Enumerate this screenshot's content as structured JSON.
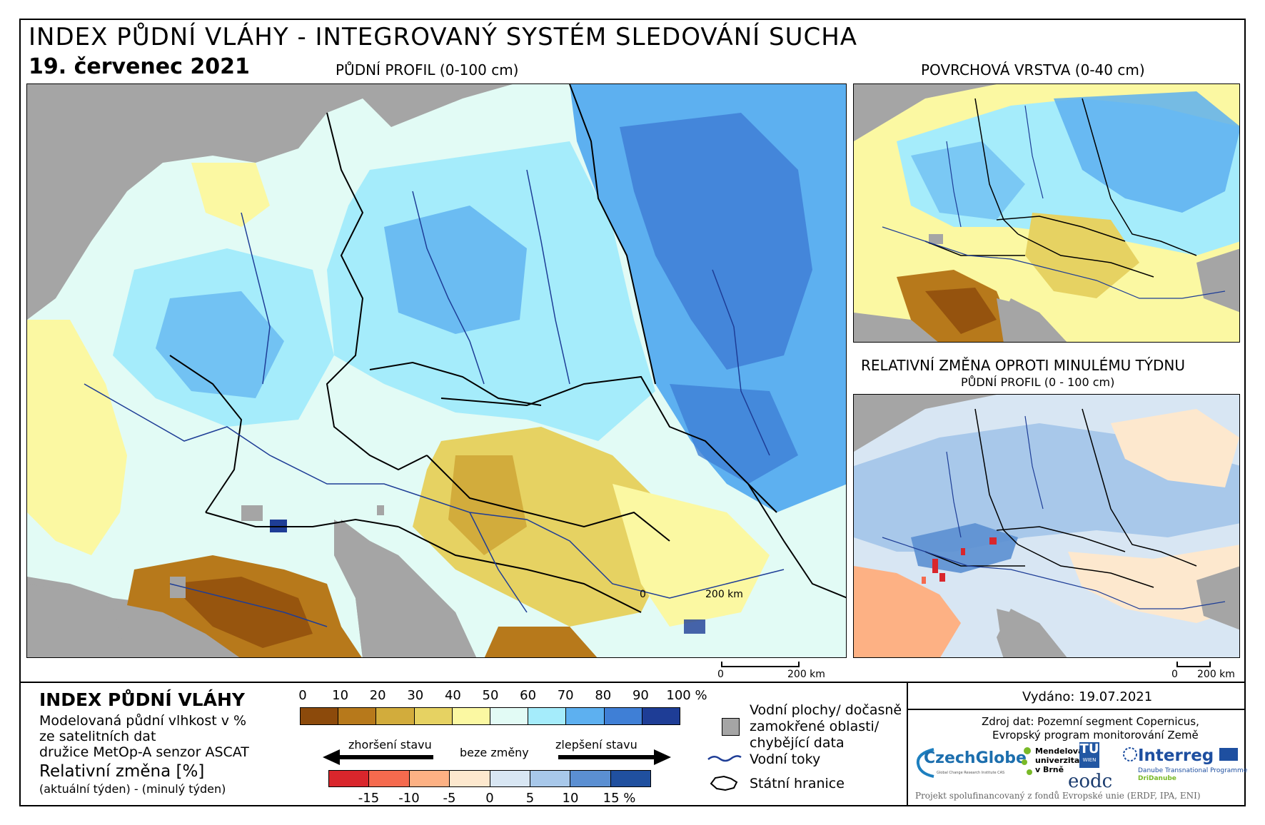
{
  "header": {
    "title": "INDEX PŮDNÍ VLÁHY - INTEGROVANÝ SYSTÉM SLEDOVÁNÍ SUCHA",
    "date": "19. červenec 2021"
  },
  "maps": {
    "main_label": "PŮDNÍ PROFIL (0-100 cm)",
    "surface_label": "POVRCHOVÁ VRSTVA (0-40 cm)",
    "change_title": "RELATIVNÍ ZMĚNA OPROTI MINULÉMU TÝDNU",
    "change_sub": "PŮDNÍ PROFIL (0 - 100 cm)",
    "scale_zero": "0",
    "scale_main": "200 km",
    "scale_small": "200 km"
  },
  "legend": {
    "title": "INDEX PŮDNÍ VLÁHY",
    "desc1": "Modelovaná půdní vlhkost v %",
    "desc2": "ze satelitních dat",
    "desc3": "družice MetOp-A senzor ASCAT",
    "change_title": "Relativní změna [%]",
    "change_desc": "(aktuální týden) - (minulý týden)",
    "index_ticks": [
      "0",
      "10",
      "20",
      "30",
      "40",
      "50",
      "60",
      "70",
      "80",
      "90",
      "100 %"
    ],
    "index_colors": [
      "#8c4a0b",
      "#b7791b",
      "#d2ac3c",
      "#e6d262",
      "#fbf8a2",
      "#e2fbf5",
      "#a5ecfb",
      "#5db0f0",
      "#3f7fd6",
      "#1e3d96"
    ],
    "worse_label": "zhoršení stavu",
    "nochange_label": "beze změny",
    "better_label": "zlepšení stavu",
    "change_ticks": [
      "-15",
      "-10",
      "-5",
      "0",
      "5",
      "10",
      "15 %"
    ],
    "change_colors": [
      "#d9262c",
      "#f56a4e",
      "#fdb184",
      "#fde8ce",
      "#d8e6f3",
      "#a8c8ea",
      "#5b8fd2",
      "#20509f"
    ],
    "water_label_1": "Vodní plochy/ dočasně",
    "water_label_2": "zamokřené oblasti/",
    "water_label_3": "chybějící data",
    "rivers_label": "Vodní toky",
    "borders_label": "Státní hranice"
  },
  "info": {
    "issued": "Vydáno: 19.07.2021",
    "source1": "Zdroj dat: Pozemní segment Copernicus,",
    "source2": "Evropský program monitorování Země",
    "footer": "Projekt spolufinancovaný z fondů Evropské unie (ERDF, IPA, ENI)"
  },
  "logos": {
    "czechglobe": "CzechGlobe",
    "czechglobe_sub": "Global Change Research Institute CAS",
    "mendel1": "Mendelova",
    "mendel2": "univerzita",
    "mendel3": "v Brně",
    "tu1": "TU",
    "tu2": "WIEN",
    "eodc": "eodc",
    "interreg": "Interreg",
    "interreg_sub": "Danube Transnational Programme",
    "dridanube": "DriDanube"
  }
}
